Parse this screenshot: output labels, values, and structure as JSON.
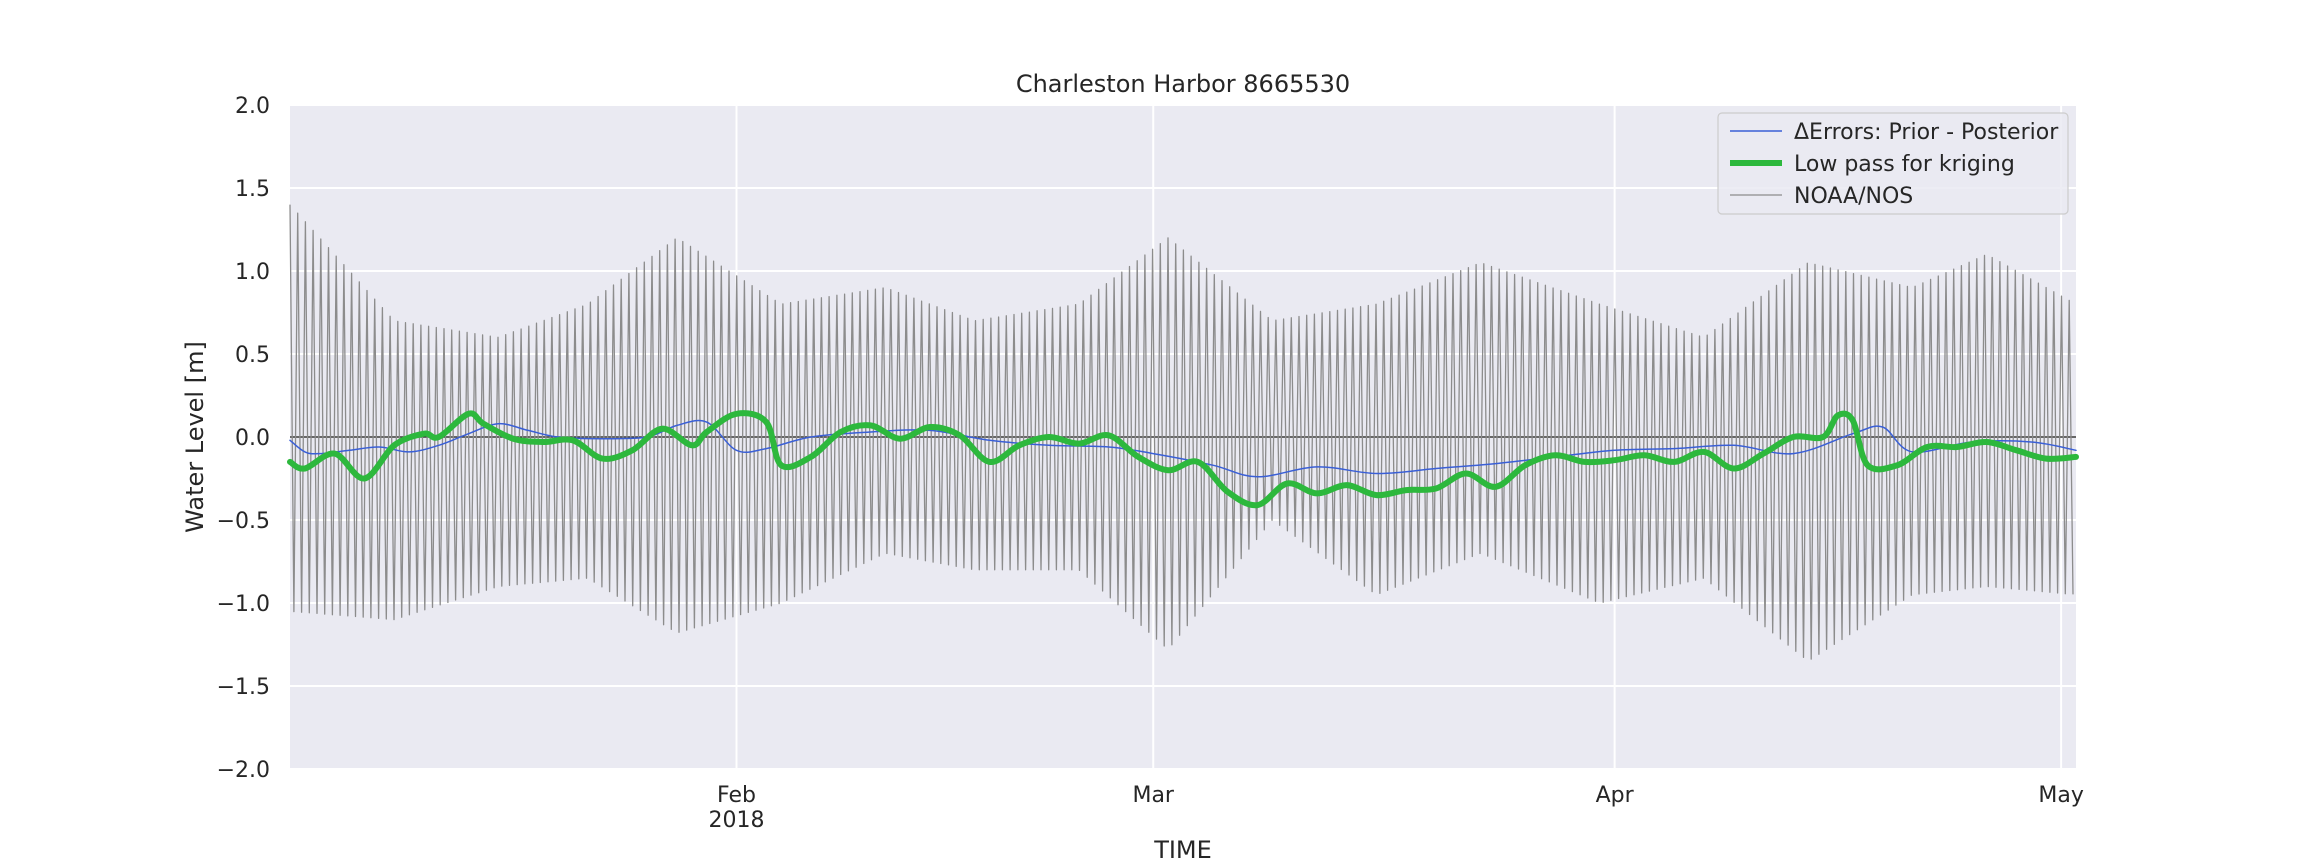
{
  "chart_data": {
    "type": "line",
    "title": "Charleston Harbor  8665530",
    "xlabel": "TIME",
    "ylabel": "Water Level [m]",
    "xlim": [
      "2018-01-02",
      "2018-05-02"
    ],
    "ylim": [
      -2.0,
      2.0
    ],
    "grid": true,
    "legend_position": "top-right",
    "y_ticks": [
      -2.0,
      -1.5,
      -1.0,
      -0.5,
      0.0,
      0.5,
      1.0,
      1.5,
      2.0
    ],
    "y_tick_labels": [
      "−2.0",
      "−1.5",
      "−1.0",
      "−0.5",
      "0.0",
      "0.5",
      "1.0",
      "1.5",
      "2.0"
    ],
    "x_ticks": [
      {
        "date": "2018-02-01",
        "label": "Feb",
        "sublabel": "2018"
      },
      {
        "date": "2018-03-01",
        "label": "Mar",
        "sublabel": ""
      },
      {
        "date": "2018-04-01",
        "label": "Apr",
        "sublabel": ""
      },
      {
        "date": "2018-05-01",
        "label": "May",
        "sublabel": ""
      }
    ],
    "reference_line": {
      "y": 0.0,
      "color": "#333333"
    },
    "series": [
      {
        "name": "ΔErrors: Prior - Posterior",
        "color": "#3a5fd6",
        "kind": "smooth",
        "x": [
          "2018-01-02",
          "2018-01-03",
          "2018-01-04",
          "2018-01-06",
          "2018-01-08",
          "2018-01-10",
          "2018-01-12",
          "2018-01-14",
          "2018-01-16",
          "2018-01-18",
          "2018-01-20",
          "2018-01-23",
          "2018-01-26",
          "2018-01-28",
          "2018-01-30",
          "2018-02-01",
          "2018-02-03",
          "2018-02-06",
          "2018-02-10",
          "2018-02-14",
          "2018-02-18",
          "2018-02-22",
          "2018-02-26",
          "2018-03-01",
          "2018-03-05",
          "2018-03-08",
          "2018-03-12",
          "2018-03-16",
          "2018-03-20",
          "2018-03-24",
          "2018-03-28",
          "2018-04-01",
          "2018-04-05",
          "2018-04-09",
          "2018-04-13",
          "2018-04-17",
          "2018-04-19",
          "2018-04-21",
          "2018-04-25",
          "2018-04-29",
          "2018-05-02"
        ],
        "y": [
          -0.02,
          -0.09,
          -0.1,
          -0.08,
          -0.06,
          -0.09,
          -0.05,
          0.02,
          0.08,
          0.04,
          0.0,
          -0.01,
          0.0,
          0.07,
          0.09,
          -0.08,
          -0.07,
          0.0,
          0.03,
          0.04,
          -0.02,
          -0.05,
          -0.06,
          -0.1,
          -0.17,
          -0.24,
          -0.18,
          -0.22,
          -0.19,
          -0.16,
          -0.12,
          -0.08,
          -0.07,
          -0.05,
          -0.1,
          0.02,
          0.06,
          -0.09,
          -0.03,
          -0.03,
          -0.08
        ]
      },
      {
        "name": "Low pass for kriging",
        "color": "#2db83d",
        "kind": "smooth",
        "x": [
          "2018-01-02",
          "2018-01-03",
          "2018-01-05",
          "2018-01-07",
          "2018-01-09",
          "2018-01-11",
          "2018-01-12",
          "2018-01-14",
          "2018-01-15",
          "2018-01-17",
          "2018-01-19",
          "2018-01-21",
          "2018-01-23",
          "2018-01-25",
          "2018-01-27",
          "2018-01-29",
          "2018-01-30",
          "2018-02-01",
          "2018-02-03",
          "2018-02-04",
          "2018-02-06",
          "2018-02-08",
          "2018-02-10",
          "2018-02-12",
          "2018-02-14",
          "2018-02-16",
          "2018-02-18",
          "2018-02-20",
          "2018-02-22",
          "2018-02-24",
          "2018-02-26",
          "2018-02-28",
          "2018-03-02",
          "2018-03-04",
          "2018-03-06",
          "2018-03-08",
          "2018-03-10",
          "2018-03-12",
          "2018-03-14",
          "2018-03-16",
          "2018-03-18",
          "2018-03-20",
          "2018-03-22",
          "2018-03-24",
          "2018-03-26",
          "2018-03-28",
          "2018-03-30",
          "2018-04-01",
          "2018-04-03",
          "2018-04-05",
          "2018-04-07",
          "2018-04-09",
          "2018-04-11",
          "2018-04-13",
          "2018-04-15",
          "2018-04-16",
          "2018-04-17",
          "2018-04-18",
          "2018-04-20",
          "2018-04-22",
          "2018-04-24",
          "2018-04-26",
          "2018-04-28",
          "2018-04-30",
          "2018-05-02"
        ],
        "y": [
          -0.15,
          -0.19,
          -0.1,
          -0.25,
          -0.05,
          0.02,
          0.0,
          0.14,
          0.08,
          -0.01,
          -0.03,
          -0.02,
          -0.13,
          -0.08,
          0.05,
          -0.05,
          0.03,
          0.14,
          0.09,
          -0.17,
          -0.12,
          0.03,
          0.07,
          -0.01,
          0.06,
          0.01,
          -0.15,
          -0.05,
          0.0,
          -0.04,
          0.01,
          -0.12,
          -0.2,
          -0.15,
          -0.33,
          -0.41,
          -0.28,
          -0.34,
          -0.29,
          -0.35,
          -0.32,
          -0.31,
          -0.22,
          -0.3,
          -0.17,
          -0.11,
          -0.15,
          -0.14,
          -0.11,
          -0.15,
          -0.09,
          -0.19,
          -0.1,
          0.0,
          0.0,
          0.13,
          0.1,
          -0.17,
          -0.17,
          -0.06,
          -0.06,
          -0.03,
          -0.08,
          -0.13,
          -0.12
        ]
      },
      {
        "name": "NOAA/NOS",
        "color": "#8c8c8c",
        "kind": "tidal",
        "x": [
          "2018-01-02",
          "2018-01-09",
          "2018-01-16",
          "2018-01-22",
          "2018-01-28",
          "2018-02-04",
          "2018-02-11",
          "2018-02-17",
          "2018-02-24",
          "2018-03-02",
          "2018-03-09",
          "2018-03-16",
          "2018-03-23",
          "2018-03-31",
          "2018-04-07",
          "2018-04-14",
          "2018-04-21",
          "2018-04-26",
          "2018-05-02"
        ],
        "high": [
          1.4,
          0.7,
          0.6,
          0.8,
          1.2,
          0.8,
          0.9,
          0.7,
          0.8,
          1.2,
          0.7,
          0.8,
          1.05,
          0.8,
          0.6,
          1.05,
          0.9,
          1.1,
          0.8
        ],
        "low": [
          -1.05,
          -1.1,
          -0.9,
          -0.85,
          -1.18,
          -1.0,
          -0.7,
          -0.8,
          -0.8,
          -1.28,
          -0.5,
          -0.95,
          -0.7,
          -1.0,
          -0.85,
          -1.35,
          -0.95,
          -0.9,
          -0.95
        ]
      }
    ]
  }
}
